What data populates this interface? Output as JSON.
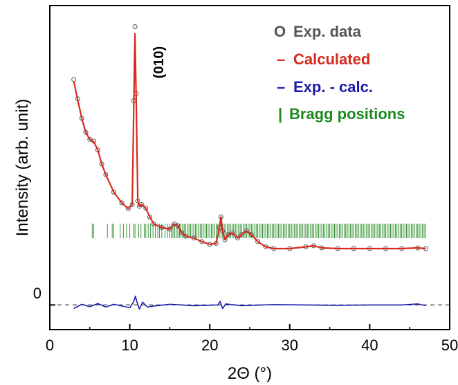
{
  "chart_data": {
    "type": "line",
    "xlabel": "2Θ (°)",
    "ylabel": "Intensity (arb. unit)",
    "xlim": [
      0,
      50
    ],
    "x_ticks": [
      "0",
      "10",
      "20",
      "30",
      "40",
      "50"
    ],
    "y_tick_labels": [
      "0"
    ],
    "grid": false,
    "legend_position": "top-right",
    "annotation": "(010)",
    "legend": {
      "exp": {
        "symbol": "O",
        "label": "Exp. data",
        "color": "#555555"
      },
      "calc": {
        "symbol": "–",
        "label": "Calculated",
        "color": "#d62a1e"
      },
      "diff": {
        "symbol": "–",
        "label": "Exp. - calc.",
        "color": "#1a1aaa"
      },
      "bragg": {
        "symbol": "|",
        "label": "Bragg positions",
        "color": "#1e8a1e"
      }
    },
    "series": [
      {
        "name": "Exp. data",
        "x": [
          3.0,
          3.5,
          4.0,
          4.5,
          5.0,
          5.5,
          6.0,
          6.5,
          7.0,
          8.0,
          9.0,
          9.8,
          10.3,
          10.5,
          10.65,
          10.8,
          11.0,
          11.2,
          11.5,
          12.0,
          12.5,
          13.0,
          14.0,
          15.0,
          15.6,
          16.0,
          16.5,
          17.0,
          18.0,
          19.0,
          20.0,
          20.8,
          21.2,
          21.4,
          21.6,
          21.9,
          22.3,
          22.8,
          23.5,
          24.0,
          24.6,
          25.2,
          26.0,
          27.0,
          28.0,
          30.0,
          32.0,
          33.0,
          34.0,
          36.0,
          38.0,
          40.0,
          42.0,
          44.0,
          46.0,
          47.0
        ],
        "y": [
          64.0,
          58.5,
          53.0,
          49.0,
          47.0,
          46.5,
          44.0,
          40.0,
          37.0,
          32.0,
          29.0,
          27.3,
          28.5,
          58.0,
          79.0,
          60.0,
          29.5,
          28.0,
          28.5,
          27.5,
          25.0,
          23.0,
          22.0,
          21.5,
          23.0,
          22.5,
          20.5,
          19.5,
          19.0,
          18.0,
          17.2,
          17.5,
          22.0,
          25.0,
          21.0,
          18.5,
          20.0,
          20.5,
          19.0,
          20.0,
          21.0,
          20.0,
          18.0,
          16.5,
          16.0,
          16.0,
          16.5,
          16.8,
          16.2,
          16.0,
          16.0,
          16.0,
          16.0,
          16.0,
          16.2,
          16.0
        ]
      },
      {
        "name": "Calculated",
        "x": [
          3.0,
          3.5,
          4.0,
          4.5,
          5.0,
          5.5,
          6.0,
          6.5,
          7.0,
          8.0,
          9.0,
          9.8,
          10.3,
          10.5,
          10.65,
          10.8,
          11.0,
          11.2,
          11.5,
          12.0,
          12.5,
          13.0,
          14.0,
          15.0,
          15.6,
          16.0,
          16.5,
          17.0,
          18.0,
          19.0,
          20.0,
          20.8,
          21.2,
          21.4,
          21.6,
          21.9,
          22.3,
          22.8,
          23.5,
          24.0,
          24.6,
          25.2,
          26.0,
          27.0,
          28.0,
          30.0,
          32.0,
          33.0,
          34.0,
          36.0,
          38.0,
          40.0,
          42.0,
          44.0,
          46.0,
          47.0
        ],
        "y": [
          63.5,
          58.0,
          53.0,
          49.0,
          47.0,
          46.3,
          44.0,
          40.0,
          37.0,
          32.0,
          29.0,
          27.3,
          28.5,
          57.0,
          77.0,
          59.0,
          29.5,
          28.0,
          28.5,
          27.5,
          25.0,
          23.0,
          22.0,
          21.5,
          23.0,
          22.5,
          20.5,
          19.5,
          19.0,
          18.0,
          17.2,
          17.5,
          22.0,
          25.0,
          21.0,
          18.5,
          20.0,
          20.5,
          19.0,
          20.0,
          21.0,
          20.0,
          18.0,
          16.5,
          16.0,
          16.0,
          16.5,
          16.8,
          16.2,
          16.0,
          16.0,
          16.0,
          16.0,
          16.0,
          16.2,
          16.0
        ]
      },
      {
        "name": "Exp. - calc.",
        "x": [
          3.0,
          4.0,
          5.0,
          6.0,
          7.0,
          8.0,
          9.0,
          10.0,
          10.5,
          10.7,
          10.9,
          11.2,
          11.6,
          12.2,
          13.0,
          15.0,
          18.0,
          21.0,
          21.3,
          21.6,
          22.0,
          24.0,
          28.0,
          32.0,
          36.0,
          40.0,
          44.0,
          46.0,
          47.0
        ],
        "y": [
          -1.0,
          0.2,
          -0.5,
          0.4,
          -0.6,
          0.2,
          -0.3,
          -0.8,
          1.0,
          2.5,
          0.8,
          -1.2,
          0.8,
          -0.6,
          -0.3,
          0.2,
          -0.2,
          0.0,
          1.0,
          -1.0,
          0.3,
          -0.2,
          0.1,
          0.0,
          -0.1,
          0.0,
          0.0,
          0.3,
          -0.2
        ]
      }
    ],
    "bragg_positions": [
      5.3,
      5.5,
      7.2,
      7.8,
      8.0,
      8.8,
      9.2,
      9.6,
      10.0,
      10.5,
      10.65,
      11.1,
      11.4,
      11.8,
      12.0,
      12.3,
      12.6,
      12.9,
      13.2,
      13.5,
      13.7,
      14.0,
      14.4,
      14.7,
      15.0,
      15.2,
      15.4,
      15.6,
      15.8,
      16.0,
      16.2,
      16.4,
      16.6,
      16.8,
      17.0,
      17.2,
      17.4,
      17.6,
      17.8,
      18.0,
      18.2,
      18.4,
      18.6,
      18.8,
      19.0,
      19.2,
      19.4,
      19.6,
      19.8,
      20.0,
      20.2,
      20.4,
      20.6,
      20.8,
      21.0,
      21.2,
      21.4,
      21.6,
      21.8,
      22.0,
      22.2,
      22.4,
      22.6,
      22.8,
      23.0,
      23.2,
      23.4,
      23.6,
      23.8,
      24.0,
      24.2,
      24.4,
      24.6,
      24.8,
      25.0,
      25.2,
      25.4,
      25.6,
      25.8,
      26.0,
      26.2,
      26.4,
      26.6,
      26.8,
      27.0,
      27.2,
      27.4,
      27.6,
      27.8,
      28.0,
      28.2,
      28.4,
      28.6,
      28.8,
      29.0,
      29.2,
      29.4,
      29.6,
      29.8,
      30.0,
      30.2,
      30.4,
      30.6,
      30.8,
      31.0,
      31.2,
      31.4,
      31.6,
      31.8,
      32.0,
      32.2,
      32.4,
      32.6,
      32.8,
      33.0,
      33.2,
      33.4,
      33.6,
      33.8,
      34.0,
      34.2,
      34.4,
      34.6,
      34.8,
      35.0,
      35.2,
      35.4,
      35.6,
      35.8,
      36.0,
      36.2,
      36.4,
      36.6,
      36.8,
      37.0,
      37.2,
      37.4,
      37.6,
      37.8,
      38.0,
      38.2,
      38.4,
      38.6,
      38.8,
      39.0,
      39.2,
      39.4,
      39.6,
      39.8,
      40.0,
      40.2,
      40.4,
      40.6,
      40.8,
      41.0,
      41.2,
      41.4,
      41.6,
      41.8,
      42.0,
      42.2,
      42.4,
      42.6,
      42.8,
      43.0,
      43.2,
      43.4,
      43.6,
      43.8,
      44.0,
      44.2,
      44.4,
      44.6,
      44.8,
      45.0,
      45.2,
      45.4,
      45.6,
      45.8,
      46.0,
      46.2,
      46.4,
      46.6,
      46.8,
      47.0
    ]
  }
}
